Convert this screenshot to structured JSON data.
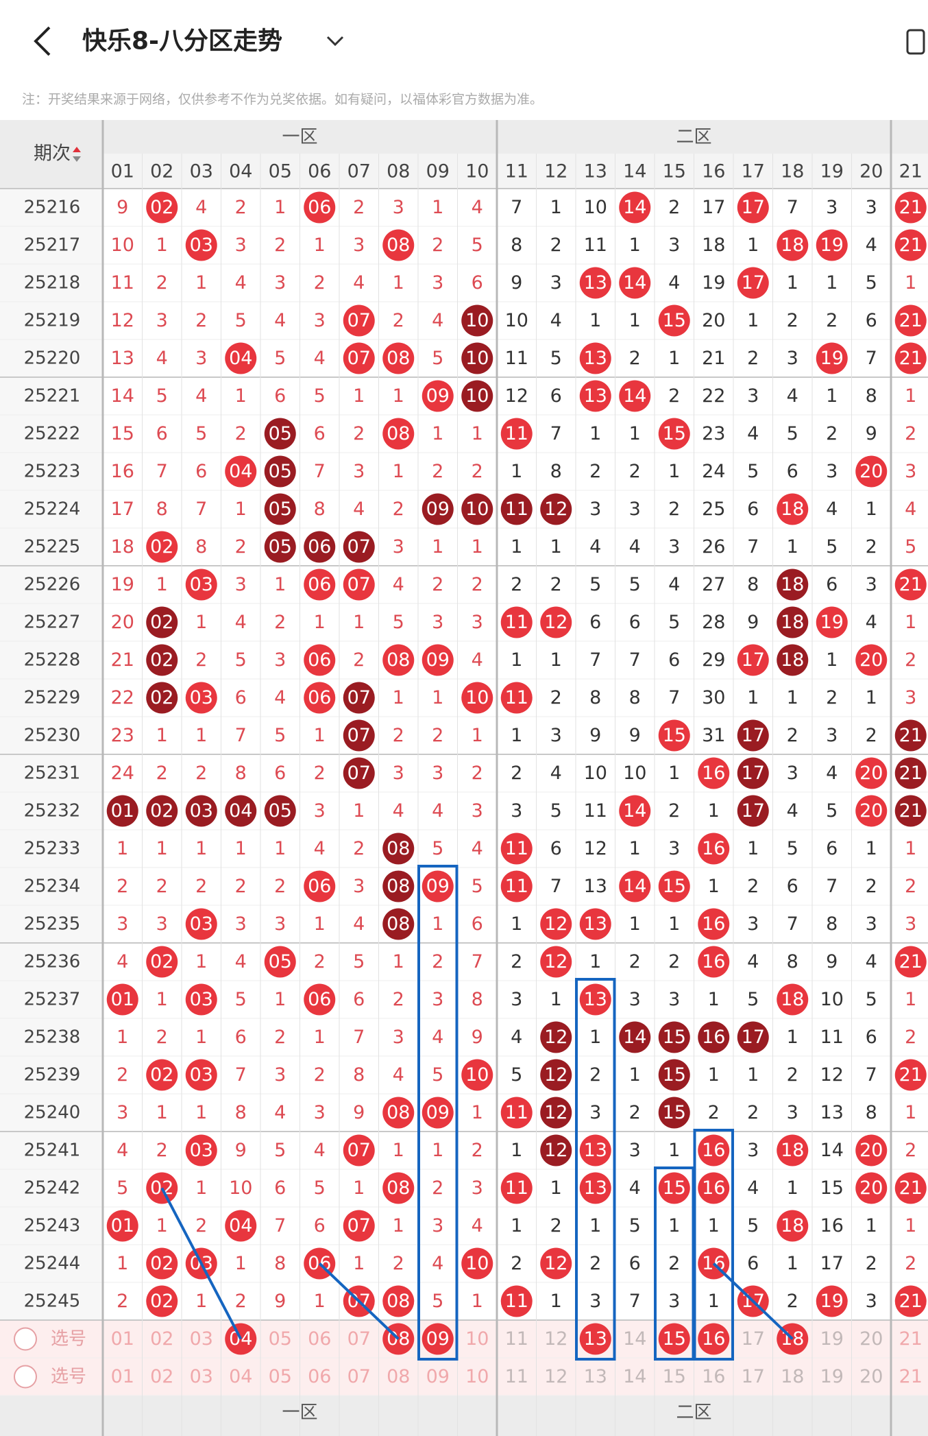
{
  "header": {
    "title": "快乐8-八分区走势"
  },
  "note": "注：开奖结果来源于网络，仅供参考不作为兑奖依据。如有疑问，以福体彩官方数据为准。",
  "table": {
    "issue_header": "期次",
    "zones": [
      "一区",
      "二区"
    ],
    "columns": [
      "01",
      "02",
      "03",
      "04",
      "05",
      "06",
      "07",
      "08",
      "09",
      "10",
      "11",
      "12",
      "13",
      "14",
      "15",
      "16",
      "17",
      "18",
      "19",
      "20",
      "21"
    ],
    "rows": [
      {
        "issue": "25216",
        "cells": [
          "9",
          "02",
          "4",
          "2",
          "1",
          "06",
          "2",
          "3",
          "1",
          "4",
          "7",
          "1",
          "10",
          "14",
          "2",
          "17",
          "17",
          "7",
          "3",
          "3",
          "21"
        ],
        "marks": ".r...r.......r..r...r"
      },
      {
        "issue": "25217",
        "cells": [
          "10",
          "1",
          "03",
          "3",
          "2",
          "1",
          "3",
          "08",
          "2",
          "5",
          "8",
          "2",
          "11",
          "1",
          "3",
          "18",
          "1",
          "18",
          "19",
          "4",
          "21"
        ],
        "marks": "..r....r.........rr.r"
      },
      {
        "issue": "25218",
        "cells": [
          "11",
          "2",
          "1",
          "4",
          "3",
          "2",
          "4",
          "1",
          "3",
          "6",
          "9",
          "3",
          "13",
          "14",
          "4",
          "19",
          "17",
          "1",
          "1",
          "5",
          "1"
        ],
        "marks": "............rr..r...."
      },
      {
        "issue": "25219",
        "cells": [
          "12",
          "3",
          "2",
          "5",
          "4",
          "3",
          "07",
          "2",
          "4",
          "10",
          "10",
          "4",
          "1",
          "1",
          "15",
          "20",
          "1",
          "2",
          "2",
          "6",
          "21"
        ],
        "marks": "......r..d....r.....r"
      },
      {
        "issue": "25220",
        "cells": [
          "13",
          "4",
          "3",
          "04",
          "5",
          "4",
          "07",
          "08",
          "5",
          "10",
          "11",
          "5",
          "13",
          "2",
          "1",
          "21",
          "2",
          "3",
          "19",
          "7",
          "21"
        ],
        "marks": "...r..rr.d..r.....r.r"
      },
      {
        "issue": "25221",
        "cells": [
          "14",
          "5",
          "4",
          "1",
          "6",
          "5",
          "1",
          "1",
          "09",
          "10",
          "12",
          "6",
          "13",
          "14",
          "2",
          "22",
          "3",
          "4",
          "1",
          "8",
          "1"
        ],
        "marks": "........rd..rr......."
      },
      {
        "issue": "25222",
        "cells": [
          "15",
          "6",
          "5",
          "2",
          "05",
          "6",
          "2",
          "08",
          "1",
          "1",
          "11",
          "7",
          "1",
          "1",
          "15",
          "23",
          "4",
          "5",
          "2",
          "9",
          "2"
        ],
        "marks": "....d..r..r...r......"
      },
      {
        "issue": "25223",
        "cells": [
          "16",
          "7",
          "6",
          "04",
          "05",
          "7",
          "3",
          "1",
          "2",
          "2",
          "1",
          "8",
          "2",
          "2",
          "1",
          "24",
          "5",
          "6",
          "3",
          "20",
          "3"
        ],
        "marks": "...rd..............r."
      },
      {
        "issue": "25224",
        "cells": [
          "17",
          "8",
          "7",
          "1",
          "05",
          "8",
          "4",
          "2",
          "09",
          "10",
          "11",
          "12",
          "3",
          "3",
          "2",
          "25",
          "6",
          "18",
          "4",
          "1",
          "4"
        ],
        "marks": "....d...dddd.....r..."
      },
      {
        "issue": "25225",
        "cells": [
          "18",
          "02",
          "8",
          "2",
          "05",
          "06",
          "07",
          "3",
          "1",
          "1",
          "1",
          "1",
          "4",
          "4",
          "3",
          "26",
          "7",
          "1",
          "5",
          "2",
          "5"
        ],
        "marks": ".r..ddd.............."
      },
      {
        "issue": "25226",
        "cells": [
          "19",
          "1",
          "03",
          "3",
          "1",
          "06",
          "07",
          "4",
          "2",
          "2",
          "2",
          "2",
          "5",
          "5",
          "4",
          "27",
          "8",
          "18",
          "6",
          "3",
          "21"
        ],
        "marks": "..r..rr..........d..r"
      },
      {
        "issue": "25227",
        "cells": [
          "20",
          "02",
          "1",
          "4",
          "2",
          "1",
          "1",
          "5",
          "3",
          "3",
          "11",
          "12",
          "6",
          "6",
          "5",
          "28",
          "9",
          "18",
          "19",
          "4",
          "1"
        ],
        "marks": ".d........rr.....dr.."
      },
      {
        "issue": "25228",
        "cells": [
          "21",
          "02",
          "2",
          "5",
          "3",
          "06",
          "2",
          "08",
          "09",
          "4",
          "1",
          "1",
          "7",
          "7",
          "6",
          "29",
          "17",
          "18",
          "1",
          "20",
          "2"
        ],
        "marks": ".d...r.rr.......rd.r."
      },
      {
        "issue": "25229",
        "cells": [
          "22",
          "02",
          "03",
          "6",
          "4",
          "06",
          "07",
          "1",
          "1",
          "10",
          "11",
          "2",
          "8",
          "8",
          "7",
          "30",
          "1",
          "1",
          "2",
          "1",
          "3"
        ],
        "marks": ".dr..rd..rr.........."
      },
      {
        "issue": "25230",
        "cells": [
          "23",
          "1",
          "1",
          "7",
          "5",
          "1",
          "07",
          "2",
          "2",
          "1",
          "1",
          "3",
          "9",
          "9",
          "15",
          "31",
          "17",
          "2",
          "3",
          "2",
          "21"
        ],
        "marks": "......d.......r.d...d"
      },
      {
        "issue": "25231",
        "cells": [
          "24",
          "2",
          "2",
          "8",
          "6",
          "2",
          "07",
          "3",
          "3",
          "2",
          "2",
          "4",
          "10",
          "10",
          "1",
          "16",
          "17",
          "3",
          "4",
          "20",
          "21"
        ],
        "marks": "......d........rd..rd"
      },
      {
        "issue": "25232",
        "cells": [
          "01",
          "02",
          "03",
          "04",
          "05",
          "3",
          "1",
          "4",
          "4",
          "3",
          "3",
          "5",
          "11",
          "14",
          "2",
          "1",
          "17",
          "4",
          "5",
          "20",
          "21"
        ],
        "marks": "ddddd........r..d..rd"
      },
      {
        "issue": "25233",
        "cells": [
          "1",
          "1",
          "1",
          "1",
          "1",
          "4",
          "2",
          "08",
          "5",
          "4",
          "11",
          "6",
          "12",
          "1",
          "3",
          "16",
          "1",
          "5",
          "6",
          "1",
          "1"
        ],
        "marks": ".......d..r....r....."
      },
      {
        "issue": "25234",
        "cells": [
          "2",
          "2",
          "2",
          "2",
          "2",
          "06",
          "3",
          "08",
          "09",
          "5",
          "11",
          "7",
          "13",
          "14",
          "15",
          "1",
          "2",
          "6",
          "7",
          "2",
          "2"
        ],
        "marks": ".....r.dr.r..rr......"
      },
      {
        "issue": "25235",
        "cells": [
          "3",
          "3",
          "03",
          "3",
          "3",
          "1",
          "4",
          "08",
          "1",
          "6",
          "1",
          "12",
          "13",
          "1",
          "1",
          "16",
          "3",
          "7",
          "8",
          "3",
          "3"
        ],
        "marks": "..r....d...rr..r....."
      },
      {
        "issue": "25236",
        "cells": [
          "4",
          "02",
          "1",
          "4",
          "05",
          "2",
          "5",
          "1",
          "2",
          "7",
          "2",
          "12",
          "1",
          "2",
          "2",
          "16",
          "4",
          "8",
          "9",
          "4",
          "21"
        ],
        "marks": ".r..r......r...r....r"
      },
      {
        "issue": "25237",
        "cells": [
          "01",
          "1",
          "03",
          "5",
          "1",
          "06",
          "6",
          "2",
          "3",
          "8",
          "3",
          "1",
          "13",
          "3",
          "3",
          "1",
          "5",
          "18",
          "10",
          "5",
          "1"
        ],
        "marks": "r.r..r......r....r..."
      },
      {
        "issue": "25238",
        "cells": [
          "1",
          "2",
          "1",
          "6",
          "2",
          "1",
          "7",
          "3",
          "4",
          "9",
          "4",
          "12",
          "1",
          "14",
          "15",
          "16",
          "17",
          "1",
          "11",
          "6",
          "2"
        ],
        "marks": "...........d.dddd...."
      },
      {
        "issue": "25239",
        "cells": [
          "2",
          "02",
          "03",
          "7",
          "3",
          "2",
          "8",
          "4",
          "5",
          "10",
          "5",
          "12",
          "2",
          "1",
          "15",
          "1",
          "1",
          "2",
          "12",
          "7",
          "21"
        ],
        "marks": ".rr......r.d..d.....r"
      },
      {
        "issue": "25240",
        "cells": [
          "3",
          "1",
          "1",
          "8",
          "4",
          "3",
          "9",
          "08",
          "09",
          "1",
          "11",
          "12",
          "3",
          "2",
          "15",
          "2",
          "2",
          "3",
          "13",
          "8",
          "1"
        ],
        "marks": ".......rr.rd..d......"
      },
      {
        "issue": "25241",
        "cells": [
          "4",
          "2",
          "03",
          "9",
          "5",
          "4",
          "07",
          "1",
          "1",
          "2",
          "1",
          "12",
          "13",
          "3",
          "1",
          "16",
          "3",
          "18",
          "14",
          "20",
          "2"
        ],
        "marks": "..r...r....dr..r.r.r."
      },
      {
        "issue": "25242",
        "cells": [
          "5",
          "02",
          "1",
          "10",
          "6",
          "5",
          "1",
          "08",
          "2",
          "3",
          "11",
          "1",
          "13",
          "4",
          "15",
          "16",
          "4",
          "1",
          "15",
          "20",
          "21"
        ],
        "marks": ".r.....r..r.r.rr...rr"
      },
      {
        "issue": "25243",
        "cells": [
          "01",
          "1",
          "2",
          "04",
          "7",
          "6",
          "07",
          "1",
          "3",
          "4",
          "1",
          "2",
          "1",
          "5",
          "1",
          "1",
          "5",
          "18",
          "16",
          "1",
          "1"
        ],
        "marks": "r..r..r..........r..."
      },
      {
        "issue": "25244",
        "cells": [
          "1",
          "02",
          "03",
          "1",
          "8",
          "06",
          "1",
          "2",
          "4",
          "10",
          "2",
          "12",
          "2",
          "6",
          "2",
          "16",
          "6",
          "1",
          "17",
          "2",
          "2"
        ],
        "marks": ".rr..r...r.r...r....."
      },
      {
        "issue": "25245",
        "cells": [
          "2",
          "02",
          "1",
          "2",
          "9",
          "1",
          "07",
          "08",
          "5",
          "1",
          "11",
          "1",
          "3",
          "7",
          "3",
          "1",
          "17",
          "2",
          "19",
          "3",
          "21"
        ],
        "marks": ".r....rr..r.....r.r.r"
      }
    ],
    "picks": [
      {
        "label": "选号",
        "marks": "...r...rr...r.rr.r..."
      },
      {
        "label": "选号",
        "marks": "....................."
      }
    ]
  },
  "footer": {
    "zones": [
      "一区",
      "二区"
    ]
  }
}
